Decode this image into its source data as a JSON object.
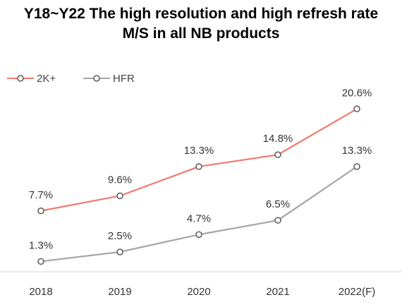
{
  "chart_data": {
    "type": "line",
    "title": "Y18~Y22 The high resolution and high refresh rate",
    "subtitle": "M/S in all NB products",
    "categories": [
      "2018",
      "2019",
      "2020",
      "2021",
      "2022(F)"
    ],
    "series": [
      {
        "name": "2K+",
        "values": [
          7.7,
          9.6,
          13.3,
          14.8,
          20.6
        ],
        "labels": [
          "7.7%",
          "9.6%",
          "13.3%",
          "14.8%",
          "20.6%"
        ],
        "color": "#f07b6e"
      },
      {
        "name": "HFR",
        "values": [
          1.3,
          2.5,
          4.7,
          6.5,
          13.3
        ],
        "labels": [
          "1.3%",
          "2.5%",
          "4.7%",
          "6.5%",
          "13.3%"
        ],
        "color": "#a6a6a6"
      }
    ],
    "xlabel": "",
    "ylabel": "",
    "ylim": [
      0,
      22
    ],
    "grid": false,
    "legend": "top-left",
    "marker_color": "#595959"
  }
}
